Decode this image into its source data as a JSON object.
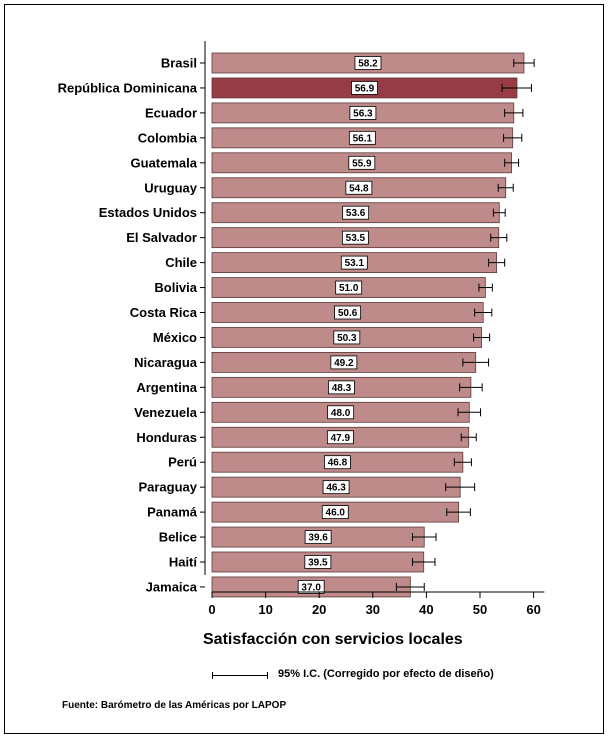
{
  "chart_data": {
    "type": "bar",
    "orientation": "horizontal",
    "xlabel": "Satisfacción con servicios locales",
    "xlim": [
      0,
      62
    ],
    "xticks": [
      "0",
      "10",
      "20",
      "30",
      "40",
      "50",
      "60"
    ],
    "categories": [
      "Brasil",
      "República Dominicana",
      "Ecuador",
      "Colombia",
      "Guatemala",
      "Uruguay",
      "Estados Unidos",
      "El Salvador",
      "Chile",
      "Bolivia",
      "Costa Rica",
      "México",
      "Nicaragua",
      "Argentina",
      "Venezuela",
      "Honduras",
      "Perú",
      "Paraguay",
      "Panamá",
      "Belice",
      "Haití",
      "Jamaica"
    ],
    "values": [
      58.2,
      56.9,
      56.3,
      56.1,
      55.9,
      54.8,
      53.6,
      53.5,
      53.1,
      51.0,
      50.6,
      50.3,
      49.2,
      48.3,
      48.0,
      47.9,
      46.8,
      46.3,
      46.0,
      39.6,
      39.5,
      37.0
    ],
    "value_labels": [
      "58.2",
      "56.9",
      "56.3",
      "56.1",
      "55.9",
      "54.8",
      "53.6",
      "53.5",
      "53.1",
      "51.0",
      "50.6",
      "50.3",
      "49.2",
      "48.3",
      "48.0",
      "47.9",
      "46.8",
      "46.3",
      "46.0",
      "39.6",
      "39.5",
      "37.0"
    ],
    "ci_low": [
      56.3,
      54.1,
      54.6,
      54.4,
      54.6,
      53.4,
      52.5,
      52.0,
      51.6,
      49.8,
      49.0,
      48.8,
      46.8,
      46.2,
      45.9,
      46.5,
      45.2,
      43.6,
      43.8,
      37.4,
      37.4,
      34.4
    ],
    "ci_high": [
      60.1,
      59.6,
      58.0,
      57.8,
      57.2,
      56.2,
      54.7,
      55.0,
      54.6,
      52.3,
      52.2,
      51.8,
      51.6,
      50.4,
      50.1,
      49.3,
      48.4,
      49.0,
      48.2,
      41.8,
      41.6,
      39.6
    ],
    "colors": {
      "bar": "#bf8a8a",
      "highlight": "#963c46",
      "border": "#5a3a3a"
    },
    "highlight_category": "República Dominicana",
    "grid": false
  },
  "legend": {
    "text": "95% I.C. (Corregido por efecto de diseño)"
  },
  "source": "Fuente: Barómetro de las Américas por LAPOP"
}
